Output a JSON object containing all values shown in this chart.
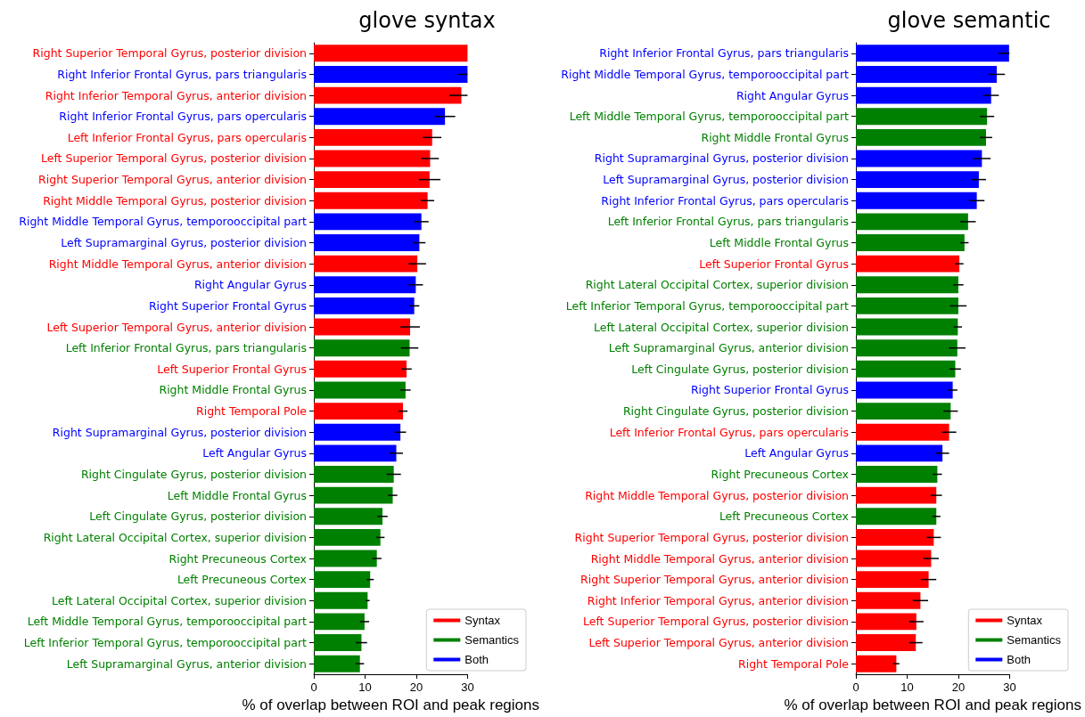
{
  "chart_data": [
    {
      "type": "bar",
      "orientation": "horizontal",
      "title": "glove syntax",
      "xlabel": "% of overlap between ROI and peak regions",
      "xlim": [
        0,
        30
      ],
      "xticks": [
        0,
        10,
        20,
        30
      ],
      "grid": false,
      "legend": "bottom right",
      "categories": [
        "Right Superior Temporal Gyrus, posterior division",
        "Right Inferior Frontal Gyrus, pars triangularis",
        "Right Inferior Temporal Gyrus, anterior division",
        "Right Inferior Frontal Gyrus, pars opercularis",
        "Left Inferior Frontal Gyrus, pars opercularis",
        "Left Superior Temporal Gyrus, posterior division",
        "Right Superior Temporal Gyrus, anterior division",
        "Right Middle Temporal Gyrus, posterior division",
        "Right Middle Temporal Gyrus, temporooccipital part",
        "Left Supramarginal Gyrus, posterior division",
        "Right Middle Temporal Gyrus, anterior division",
        "Right Angular Gyrus",
        "Right Superior Frontal Gyrus",
        "Left Superior Temporal Gyrus, anterior division",
        "Left Inferior Frontal Gyrus, pars triangularis",
        "Left Superior Frontal Gyrus",
        "Right Middle Frontal Gyrus",
        "Right Temporal Pole",
        "Right Supramarginal Gyrus, posterior division",
        "Left Angular Gyrus",
        "Right Cingulate Gyrus, posterior division",
        "Left Middle Frontal Gyrus",
        "Left Cingulate Gyrus, posterior division",
        "Right Lateral Occipital Cortex, superior division",
        "Right Precuneous Cortex",
        "Left Precuneous Cortex",
        "Left Lateral Occipital Cortex, superior division",
        "Left Middle Temporal Gyrus, temporooccipital part",
        "Left Inferior Temporal Gyrus, temporooccipital part",
        "Left Supramarginal Gyrus, anterior division"
      ],
      "series": [
        {
          "name": "Syntax",
          "color": "#ff0000",
          "values": [
            30.0,
            null,
            28.8,
            null,
            23.1,
            22.7,
            22.6,
            22.2,
            null,
            null,
            20.2,
            null,
            null,
            18.8,
            null,
            18.1,
            null,
            17.4,
            null,
            null,
            null,
            null,
            null,
            null,
            null,
            null,
            null,
            null,
            null,
            null
          ],
          "errors": [
            null,
            null,
            [
              26.4,
              30
            ],
            null,
            1.8,
            1.7,
            2.1,
            1.3,
            null,
            null,
            1.7,
            null,
            null,
            1.9,
            null,
            1.0,
            null,
            0.9,
            null,
            null,
            null,
            null,
            null,
            null,
            null,
            null,
            null,
            null,
            null,
            null
          ]
        },
        {
          "name": "Semantics",
          "color": "#008000",
          "values": [
            null,
            null,
            null,
            null,
            null,
            null,
            null,
            null,
            null,
            null,
            null,
            null,
            null,
            null,
            18.7,
            null,
            17.9,
            null,
            null,
            null,
            15.6,
            15.4,
            13.4,
            13.0,
            12.3,
            11.0,
            10.5,
            9.9,
            9.3,
            9.0
          ],
          "errors": [
            null,
            null,
            null,
            null,
            null,
            null,
            null,
            null,
            null,
            null,
            null,
            null,
            null,
            null,
            1.7,
            null,
            1.0,
            null,
            null,
            null,
            1.4,
            0.9,
            1.0,
            0.8,
            0.9,
            0.7,
            0.4,
            0.9,
            1.1,
            0.8
          ]
        },
        {
          "name": "Both",
          "color": "#0000ff",
          "values": [
            null,
            30.0,
            null,
            25.6,
            null,
            null,
            null,
            null,
            21.0,
            20.6,
            null,
            19.9,
            19.6,
            null,
            null,
            null,
            null,
            null,
            16.9,
            16.1,
            null,
            null,
            null,
            null,
            null,
            null,
            null,
            null,
            null,
            null
          ],
          "errors": [
            null,
            [
              28.1,
              30
            ],
            null,
            2.0,
            null,
            null,
            null,
            null,
            1.4,
            1.2,
            null,
            1.4,
            1.0,
            null,
            null,
            null,
            null,
            null,
            1.1,
            1.3,
            null,
            null,
            null,
            null,
            null,
            null,
            null,
            null,
            null,
            null
          ]
        }
      ]
    },
    {
      "type": "bar",
      "orientation": "horizontal",
      "title": "glove semantic",
      "xlabel": "% of overlap between ROI and peak regions",
      "xlim": [
        0,
        30
      ],
      "xticks": [
        0,
        10,
        20,
        30
      ],
      "grid": false,
      "legend": "bottom right",
      "categories": [
        "Right Inferior Frontal Gyrus, pars triangularis",
        "Right Middle Temporal Gyrus, temporooccipital part",
        "Right Angular Gyrus",
        "Left Middle Temporal Gyrus, temporooccipital part",
        "Right Middle Frontal Gyrus",
        "Right Supramarginal Gyrus, posterior division",
        "Left Supramarginal Gyrus, posterior division",
        "Right Inferior Frontal Gyrus, pars opercularis",
        "Left Inferior Frontal Gyrus, pars triangularis",
        "Left Middle Frontal Gyrus",
        "Left Superior Frontal Gyrus",
        "Right Lateral Occipital Cortex, superior division",
        "Left Inferior Temporal Gyrus, temporooccipital part",
        "Left Lateral Occipital Cortex, superior division",
        "Left Supramarginal Gyrus, anterior division",
        "Left Cingulate Gyrus, posterior division",
        "Right Superior Frontal Gyrus",
        "Right Cingulate Gyrus, posterior division",
        "Left Inferior Frontal Gyrus, pars opercularis",
        "Left Angular Gyrus",
        "Right Precuneous Cortex",
        "Right Middle Temporal Gyrus, posterior division",
        "Left Precuneous Cortex",
        "Right Superior Temporal Gyrus, posterior division",
        "Right Middle Temporal Gyrus, anterior division",
        "Right Superior Temporal Gyrus, anterior division",
        "Right Inferior Temporal Gyrus, anterior division",
        "Left Superior Temporal Gyrus, posterior division",
        "Left Superior Temporal Gyrus, anterior division",
        "Right Temporal Pole"
      ],
      "series": [
        {
          "name": "Syntax",
          "color": "#ff0000",
          "values": [
            null,
            null,
            null,
            null,
            null,
            null,
            null,
            null,
            null,
            null,
            20.2,
            null,
            null,
            null,
            null,
            null,
            null,
            null,
            18.2,
            null,
            null,
            15.7,
            null,
            15.2,
            14.7,
            14.2,
            12.6,
            11.8,
            11.7,
            7.9
          ],
          "errors": [
            null,
            null,
            null,
            null,
            null,
            null,
            null,
            null,
            null,
            null,
            0.8,
            null,
            null,
            null,
            null,
            null,
            null,
            null,
            1.4,
            null,
            null,
            1.1,
            null,
            1.4,
            1.5,
            1.5,
            1.5,
            1.4,
            1.3,
            0.6
          ]
        },
        {
          "name": "Semantics",
          "color": "#008000",
          "values": [
            null,
            null,
            null,
            25.6,
            25.4,
            null,
            null,
            null,
            21.9,
            21.2,
            null,
            20.0,
            20.0,
            19.9,
            19.8,
            19.4,
            null,
            18.5,
            null,
            null,
            15.9,
            null,
            15.7,
            null,
            null,
            null,
            null,
            null,
            null,
            null
          ],
          "errors": [
            null,
            null,
            null,
            1.4,
            1.2,
            null,
            null,
            null,
            1.5,
            0.8,
            null,
            1.0,
            1.6,
            0.8,
            1.6,
            1.1,
            null,
            1.4,
            null,
            null,
            0.9,
            null,
            0.8,
            null,
            null,
            null,
            null,
            null,
            null,
            null
          ]
        },
        {
          "name": "Both",
          "color": "#0000ff",
          "values": [
            29.9,
            27.5,
            26.4,
            null,
            null,
            24.6,
            24.0,
            23.6,
            null,
            null,
            null,
            null,
            null,
            null,
            null,
            null,
            18.9,
            null,
            null,
            16.9,
            null,
            null,
            null,
            null,
            null,
            null,
            null,
            null,
            null,
            null
          ],
          "errors": [
            [
              27.8,
              30
            ],
            1.6,
            1.5,
            null,
            null,
            1.7,
            1.4,
            1.5,
            null,
            null,
            null,
            null,
            null,
            null,
            null,
            null,
            0.9,
            null,
            null,
            1.3,
            null,
            null,
            null,
            null,
            null,
            null,
            null,
            null,
            null,
            null
          ]
        }
      ]
    }
  ]
}
